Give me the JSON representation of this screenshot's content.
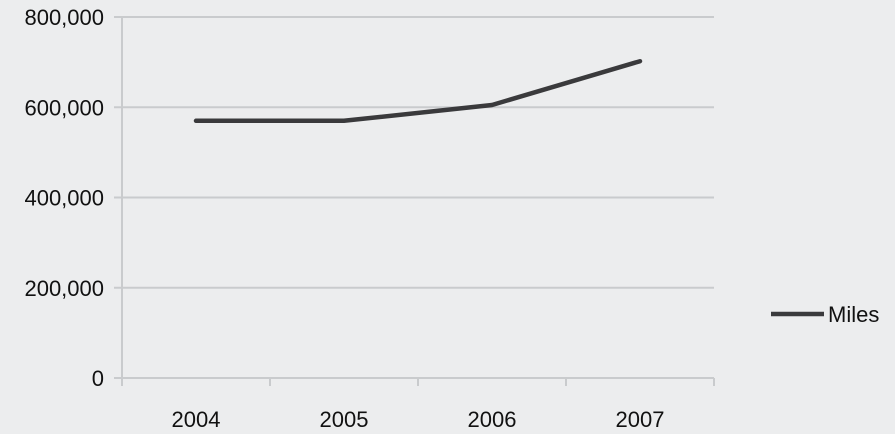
{
  "chart_data": {
    "type": "line",
    "categories": [
      "2004",
      "2005",
      "2006",
      "2007"
    ],
    "series": [
      {
        "name": "Miles",
        "values": [
          570000,
          570000,
          605000,
          702000
        ],
        "color": "#3a3a3c"
      }
    ],
    "ylim": [
      0,
      800000
    ],
    "yticks": [
      0,
      200000,
      400000,
      600000,
      800000
    ],
    "ytick_labels": [
      "0",
      "200,000",
      "400,000",
      "600,000",
      "800,000"
    ],
    "grid": true,
    "legend": "right",
    "colors": {
      "background": "#ecedee",
      "grid": "#c9cbcd",
      "axis": "#c9cbcd"
    }
  }
}
